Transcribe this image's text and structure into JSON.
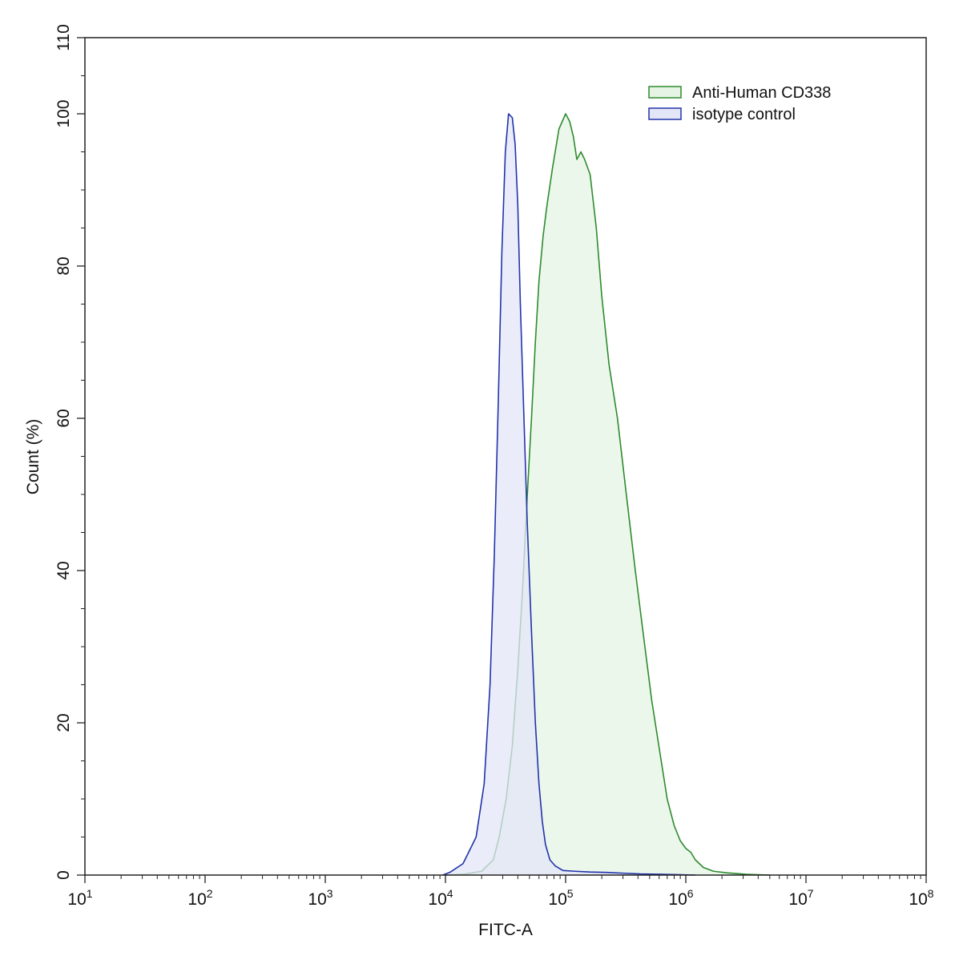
{
  "chart_data": {
    "type": "area",
    "xlabel": "FITC-A",
    "ylabel": "Count  (%)",
    "x_scale": "log",
    "xlim": [
      10,
      100000000
    ],
    "ylim": [
      0,
      110
    ],
    "x_ticks": [
      {
        "base": "10",
        "exp": "1",
        "value": 10
      },
      {
        "base": "10",
        "exp": "2",
        "value": 100
      },
      {
        "base": "10",
        "exp": "3",
        "value": 1000
      },
      {
        "base": "10",
        "exp": "4",
        "value": 10000
      },
      {
        "base": "10",
        "exp": "5",
        "value": 100000
      },
      {
        "base": "10",
        "exp": "6",
        "value": 1000000
      },
      {
        "base": "10",
        "exp": "7",
        "value": 10000000
      },
      {
        "base": "10",
        "exp": "8",
        "value": 100000000
      }
    ],
    "y_ticks": [
      "0",
      "20",
      "40",
      "60",
      "80",
      "100",
      "110"
    ],
    "legend_position": "top-right",
    "series": [
      {
        "name": "Anti-Human CD338",
        "stroke": "#2e8b2e",
        "fill": "#e6f4e6",
        "points": [
          [
            10000,
            0
          ],
          [
            14000,
            0.1
          ],
          [
            20000,
            0.5
          ],
          [
            25000,
            2
          ],
          [
            28000,
            5
          ],
          [
            32000,
            10
          ],
          [
            36000,
            17
          ],
          [
            40000,
            27
          ],
          [
            44000,
            38
          ],
          [
            48000,
            50
          ],
          [
            52000,
            60
          ],
          [
            56000,
            70
          ],
          [
            60000,
            78
          ],
          [
            65000,
            84
          ],
          [
            70000,
            88
          ],
          [
            78000,
            93
          ],
          [
            88000,
            98
          ],
          [
            100000,
            100
          ],
          [
            108000,
            99
          ],
          [
            116000,
            97
          ],
          [
            124000,
            94
          ],
          [
            134000,
            95
          ],
          [
            144000,
            94
          ],
          [
            160000,
            92
          ],
          [
            180000,
            85
          ],
          [
            200000,
            76
          ],
          [
            230000,
            67
          ],
          [
            270000,
            60
          ],
          [
            320000,
            50
          ],
          [
            380000,
            40
          ],
          [
            440000,
            32
          ],
          [
            520000,
            23
          ],
          [
            610000,
            16
          ],
          [
            700000,
            10
          ],
          [
            800000,
            6.5
          ],
          [
            900000,
            4.5
          ],
          [
            1000000,
            3.5
          ],
          [
            1100000,
            3
          ],
          [
            1200000,
            2
          ],
          [
            1400000,
            1
          ],
          [
            1700000,
            0.5
          ],
          [
            2200000,
            0.3
          ],
          [
            3200000,
            0.1
          ],
          [
            5000000,
            0
          ]
        ]
      },
      {
        "name": "isotype control",
        "stroke": "#2233aa",
        "fill": "#e3e6f7",
        "points": [
          [
            9500,
            0
          ],
          [
            11000,
            0.4
          ],
          [
            14000,
            1.5
          ],
          [
            18000,
            5
          ],
          [
            21000,
            12
          ],
          [
            23500,
            25
          ],
          [
            25500,
            42
          ],
          [
            27500,
            62
          ],
          [
            29500,
            82
          ],
          [
            31500,
            95
          ],
          [
            33500,
            100
          ],
          [
            36000,
            99.5
          ],
          [
            38000,
            96
          ],
          [
            40000,
            88
          ],
          [
            42000,
            75
          ],
          [
            45000,
            60
          ],
          [
            48000,
            46
          ],
          [
            52000,
            32
          ],
          [
            56000,
            20
          ],
          [
            60000,
            12
          ],
          [
            64000,
            7
          ],
          [
            68000,
            4
          ],
          [
            74000,
            2
          ],
          [
            82000,
            1.2
          ],
          [
            95000,
            0.6
          ],
          [
            120000,
            0.5
          ],
          [
            160000,
            0.4
          ],
          [
            220000,
            0.35
          ],
          [
            300000,
            0.25
          ],
          [
            420000,
            0.15
          ],
          [
            650000,
            0.1
          ],
          [
            900000,
            0.05
          ],
          [
            1200000,
            0
          ]
        ]
      }
    ]
  }
}
